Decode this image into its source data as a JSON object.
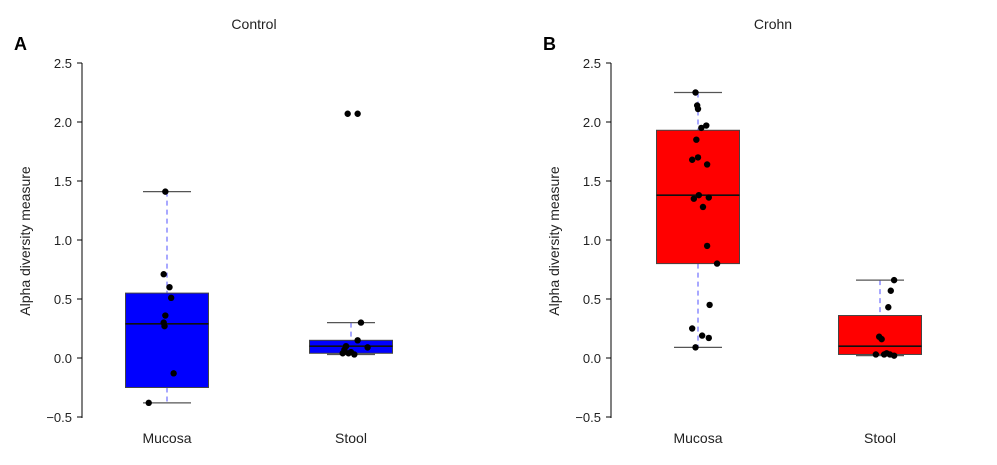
{
  "chart_data": [
    {
      "type": "box",
      "panel_label": "A",
      "title": "Control",
      "ylabel": "Alpha diversity measure",
      "xlabel": "",
      "ylim": [
        -0.5,
        2.5
      ],
      "yticks": [
        "−0.5",
        "0.0",
        "0.5",
        "1.0",
        "1.5",
        "2.0",
        "2.5"
      ],
      "box_color": "#0000ff",
      "categories": [
        "Mucosa",
        "Stool"
      ],
      "boxes": [
        {
          "q1": -0.25,
          "median": 0.29,
          "q3": 0.55,
          "whisker_low": -0.38,
          "whisker_high": 1.41
        },
        {
          "q1": 0.04,
          "median": 0.1,
          "q3": 0.15,
          "whisker_low": 0.03,
          "whisker_high": 0.3
        }
      ],
      "points": [
        [
          [
            -0.02,
            1.41
          ],
          [
            -0.04,
            0.71
          ],
          [
            0.03,
            0.6
          ],
          [
            0.05,
            0.51
          ],
          [
            -0.02,
            0.36
          ],
          [
            -0.04,
            0.3
          ],
          [
            -0.03,
            0.27
          ],
          [
            0.08,
            -0.13
          ],
          [
            -0.22,
            -0.38
          ]
        ],
        [
          [
            -0.04,
            2.07
          ],
          [
            0.08,
            2.07
          ],
          [
            0.12,
            0.3
          ],
          [
            0.08,
            0.15
          ],
          [
            -0.06,
            0.1
          ],
          [
            -0.08,
            0.07
          ],
          [
            0.2,
            0.09
          ],
          [
            -0.1,
            0.04
          ],
          [
            -0.03,
            0.04
          ],
          [
            0.04,
            0.03
          ],
          [
            0.0,
            0.05
          ]
        ]
      ]
    },
    {
      "type": "box",
      "panel_label": "B",
      "title": "Crohn",
      "ylabel": "Alpha diversity measure",
      "xlabel": "",
      "ylim": [
        -0.5,
        2.5
      ],
      "yticks": [
        "−0.5",
        "0.0",
        "0.5",
        "1.0",
        "1.5",
        "2.0",
        "2.5"
      ],
      "box_color": "#ff0000",
      "categories": [
        "Mucosa",
        "Stool"
      ],
      "boxes": [
        {
          "q1": 0.8,
          "median": 1.38,
          "q3": 1.93,
          "whisker_low": 0.09,
          "whisker_high": 2.25
        },
        {
          "q1": 0.03,
          "median": 0.1,
          "q3": 0.36,
          "whisker_low": 0.02,
          "whisker_high": 0.66
        }
      ],
      "points": [
        [
          [
            -0.03,
            2.25
          ],
          [
            -0.01,
            2.14
          ],
          [
            0.0,
            2.11
          ],
          [
            0.04,
            1.95
          ],
          [
            0.1,
            1.97
          ],
          [
            -0.02,
            1.85
          ],
          [
            -0.07,
            1.68
          ],
          [
            0.0,
            1.7
          ],
          [
            0.11,
            1.64
          ],
          [
            -0.05,
            1.35
          ],
          [
            0.01,
            1.38
          ],
          [
            0.13,
            1.36
          ],
          [
            0.06,
            1.28
          ],
          [
            0.11,
            0.95
          ],
          [
            0.23,
            0.8
          ],
          [
            0.14,
            0.45
          ],
          [
            -0.07,
            0.25
          ],
          [
            0.05,
            0.19
          ],
          [
            0.13,
            0.17
          ],
          [
            -0.03,
            0.09
          ]
        ],
        [
          [
            0.17,
            0.66
          ],
          [
            0.13,
            0.57
          ],
          [
            0.1,
            0.43
          ],
          [
            -0.01,
            0.18
          ],
          [
            0.02,
            0.16
          ],
          [
            -0.05,
            0.03
          ],
          [
            0.05,
            0.03
          ],
          [
            0.17,
            0.02
          ],
          [
            0.08,
            0.04
          ],
          [
            0.12,
            0.03
          ]
        ]
      ]
    }
  ]
}
